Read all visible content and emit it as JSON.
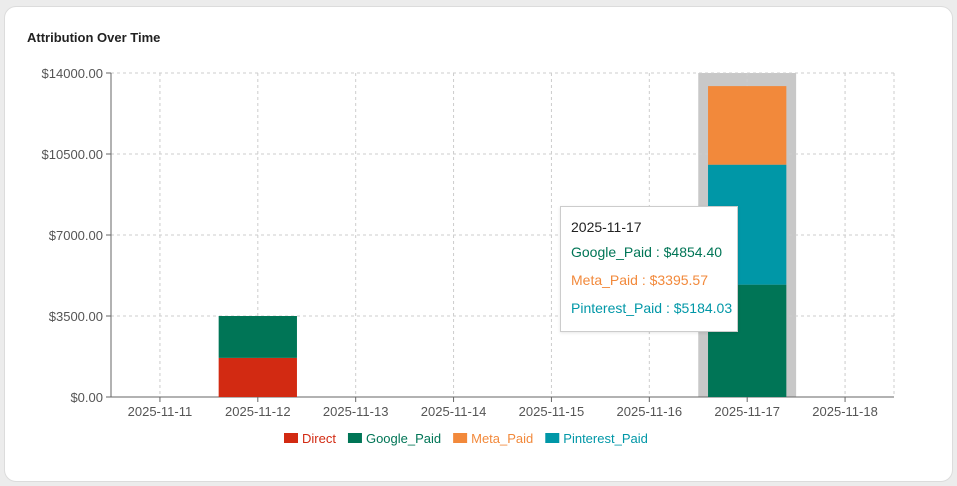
{
  "chart_data": {
    "type": "bar",
    "stacked": true,
    "title": "Attribution Over Time",
    "categories": [
      "2025-11-11",
      "2025-11-12",
      "2025-11-13",
      "2025-11-14",
      "2025-11-15",
      "2025-11-16",
      "2025-11-17",
      "2025-11-18"
    ],
    "series": [
      {
        "name": "Direct",
        "color": "#d22a12",
        "values": [
          0,
          1690,
          0,
          0,
          0,
          0,
          0,
          0
        ]
      },
      {
        "name": "Google_Paid",
        "color": "#007556",
        "values": [
          0,
          1810,
          0,
          0,
          0,
          0,
          4854.4,
          0
        ]
      },
      {
        "name": "Pinterest_Paid",
        "color": "#0097a7",
        "values": [
          0,
          0,
          0,
          0,
          0,
          0,
          5184.03,
          0
        ]
      },
      {
        "name": "Meta_Paid",
        "color": "#f2893b",
        "values": [
          0,
          0,
          0,
          0,
          0,
          0,
          3395.57,
          0
        ]
      }
    ],
    "legend_order": [
      "Direct",
      "Google_Paid",
      "Meta_Paid",
      "Pinterest_Paid"
    ],
    "yticks": [
      "$0.00",
      "$3500.00",
      "$7000.00",
      "$10500.00",
      "$14000.00"
    ],
    "ylim": [
      0,
      14000
    ],
    "grid": true,
    "legend_position": "bottom",
    "highlighted_category": "2025-11-17"
  },
  "tooltip": {
    "date": "2025-11-17",
    "lines": [
      {
        "text": "Google_Paid : $4854.40",
        "color": "#007556"
      },
      {
        "text": "Meta_Paid : $3395.57",
        "color": "#f2893b"
      },
      {
        "text": "Pinterest_Paid : $5184.03",
        "color": "#0097a7"
      }
    ]
  }
}
